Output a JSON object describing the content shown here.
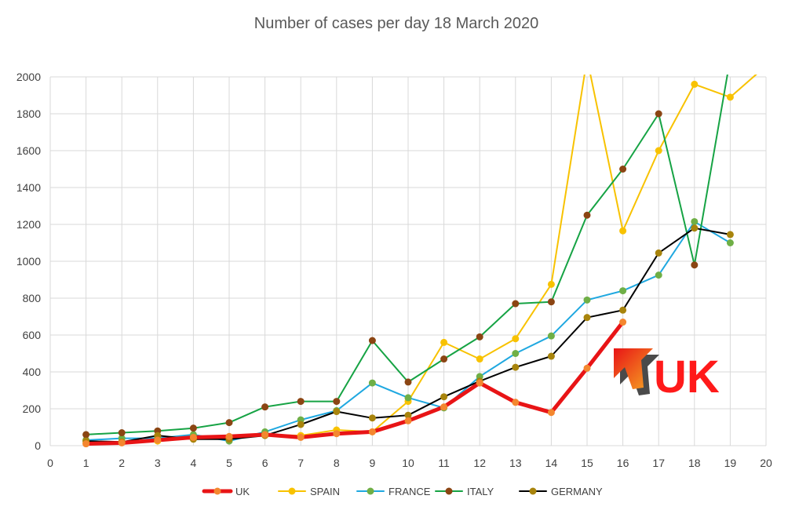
{
  "chart_data": {
    "type": "line",
    "title": "Number of cases per day  18 March 2020",
    "xlim": [
      0,
      20
    ],
    "ylim": [
      0,
      2000
    ],
    "x_ticks": [
      0,
      1,
      2,
      3,
      4,
      5,
      6,
      7,
      8,
      9,
      10,
      11,
      12,
      13,
      14,
      15,
      16,
      17,
      18,
      19,
      20
    ],
    "y_ticks": [
      0,
      200,
      400,
      600,
      800,
      1000,
      1200,
      1400,
      1600,
      1800,
      2000
    ],
    "grid": true,
    "legend_position": "bottom",
    "annotation": "UK",
    "series": [
      {
        "name": "UK",
        "color": "#e81416",
        "marker_color": "#f4872f",
        "width": 5,
        "x": [
          1,
          2,
          3,
          4,
          5,
          6,
          7,
          8,
          9,
          10,
          11,
          12,
          13,
          14,
          15,
          16
        ],
        "y": [
          10,
          15,
          30,
          45,
          50,
          60,
          45,
          65,
          75,
          135,
          210,
          340,
          235,
          180,
          420,
          670
        ]
      },
      {
        "name": "SPAIN",
        "color": "#f8c200",
        "marker_color": "#f8c200",
        "width": 2,
        "x": [
          1,
          2,
          3,
          4,
          5,
          6,
          7,
          8,
          9,
          10,
          11,
          12,
          13,
          14,
          15,
          16,
          17,
          18,
          19,
          20
        ],
        "y": [
          15,
          20,
          25,
          40,
          45,
          60,
          55,
          85,
          75,
          240,
          560,
          470,
          580,
          875,
          2100,
          1165,
          1600,
          1960,
          1890,
          2060
        ]
      },
      {
        "name": "FRANCE",
        "color": "#1fa8e0",
        "marker_color": "#6faf46",
        "width": 2,
        "x": [
          1,
          2,
          3,
          4,
          5,
          6,
          7,
          8,
          9,
          10,
          11,
          12,
          13,
          14,
          15,
          16,
          17,
          18,
          19
        ],
        "y": [
          30,
          40,
          40,
          60,
          25,
          75,
          140,
          190,
          340,
          260,
          205,
          375,
          500,
          595,
          790,
          840,
          925,
          1215,
          1100
        ]
      },
      {
        "name": "ITALY",
        "color": "#16a344",
        "marker_color": "#8b4513",
        "width": 2,
        "x": [
          1,
          2,
          3,
          4,
          5,
          6,
          7,
          8,
          9,
          10,
          11,
          12,
          13,
          14,
          15,
          16,
          17,
          18,
          19
        ],
        "y": [
          60,
          70,
          80,
          95,
          125,
          210,
          240,
          240,
          570,
          345,
          470,
          590,
          770,
          780,
          1250,
          1500,
          1800,
          980,
          2100
        ]
      },
      {
        "name": "GERMANY",
        "color": "#000000",
        "marker_color": "#a8840c",
        "width": 2,
        "x": [
          1,
          2,
          3,
          4,
          5,
          6,
          7,
          8,
          9,
          10,
          11,
          12,
          13,
          14,
          15,
          16,
          17,
          18,
          19
        ],
        "y": [
          25,
          20,
          55,
          35,
          35,
          55,
          115,
          185,
          150,
          165,
          265,
          350,
          425,
          485,
          695,
          735,
          1045,
          1180,
          1145
        ]
      }
    ]
  },
  "colors": {
    "callout_text": "#ff1a1a",
    "arrow_top": "#e81416",
    "arrow_bottom": "#f6a623",
    "arrow_shadow": "#4a4a4a"
  },
  "icons": {
    "callout_arrow": "arrow-up-left-icon"
  }
}
